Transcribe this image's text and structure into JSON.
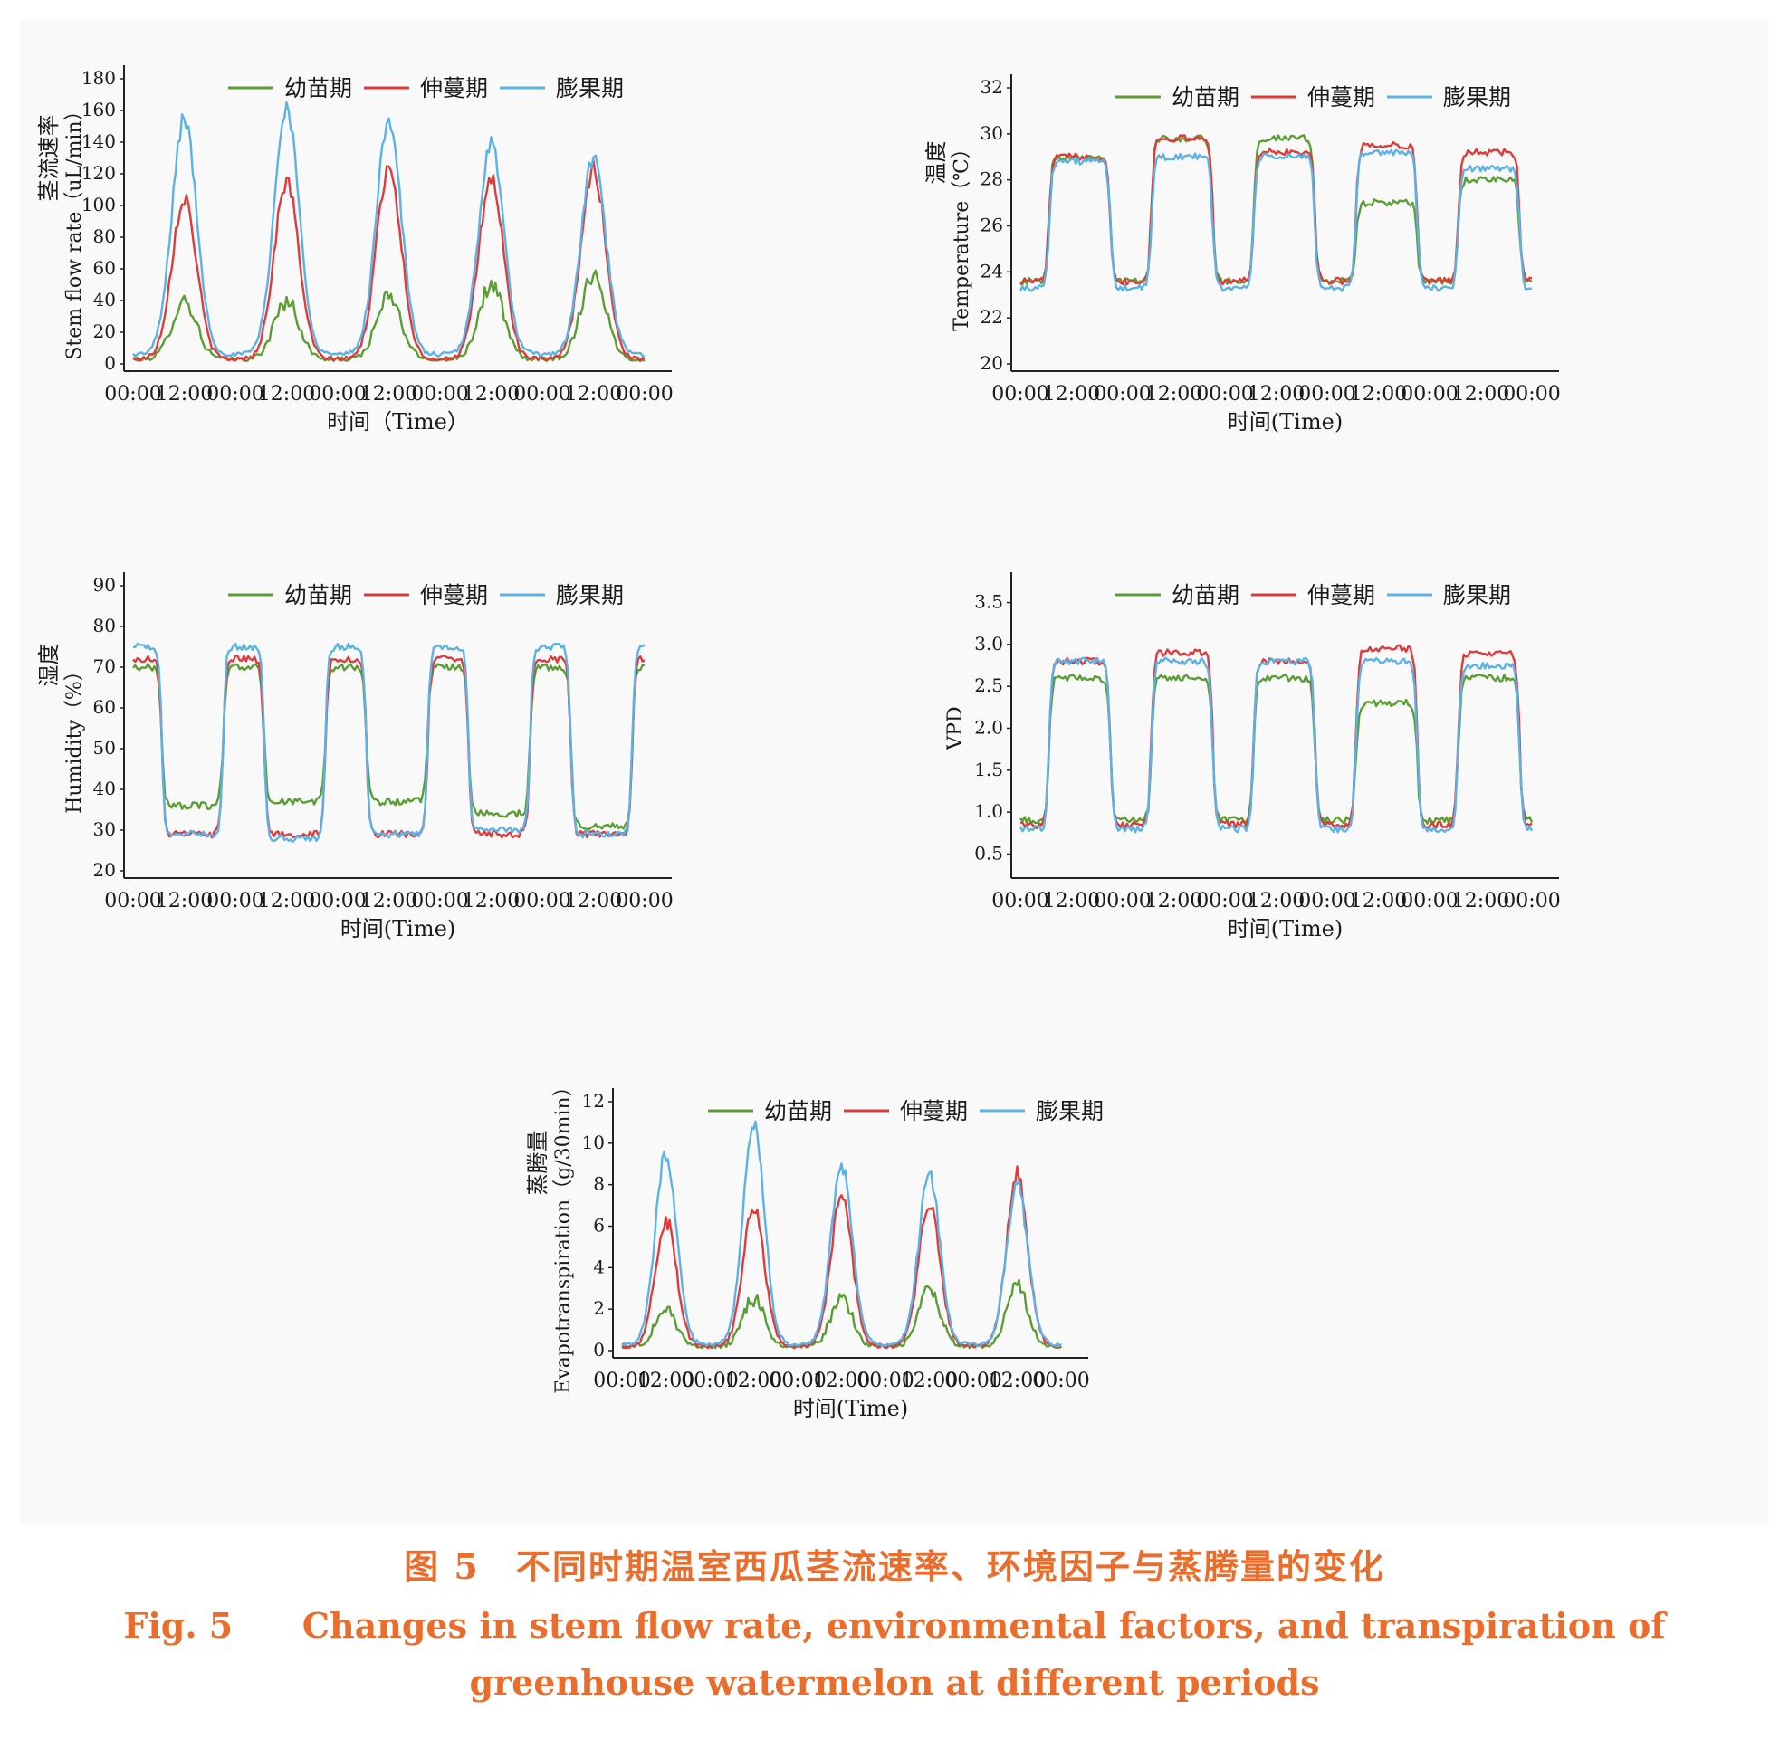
{
  "figure": {
    "caption_cn": "图 5　不同时期温室西瓜茎流速率、环境因子与蒸腾量的变化",
    "caption_en_label": "Fig. 5",
    "caption_en_line1": "Changes in stem flow rate, environmental factors, and transpiration of",
    "caption_en_line2": "greenhouse watermelon at different periods"
  },
  "colors": {
    "幼苗期": "#5a9e32",
    "伸蔓期": "#e03a3a",
    "膨果期": "#5bb2e6"
  },
  "chart_data": [
    {
      "id": "stem",
      "type": "line",
      "ylabel_cn": "茎流速率",
      "ylabel_en": "Stem flow rate（uL/min）",
      "xlabel": "时间（Time）",
      "ylim": [
        0,
        180
      ],
      "yticks": [
        "0",
        "20",
        "40",
        "60",
        "80",
        "100",
        "120",
        "140",
        "160",
        "180"
      ],
      "xticks": [
        "00:00",
        "12:00",
        "00:00",
        "12:00",
        "00:00",
        "12:00",
        "00:00",
        "12:00",
        "00:00",
        "12:00",
        "00:00"
      ],
      "legend": [
        "幼苗期",
        "伸蔓期",
        "膨果期"
      ],
      "series": [
        {
          "name": "幼苗期",
          "night": 3,
          "peaks": [
            40,
            40,
            42,
            50,
            57
          ]
        },
        {
          "name": "伸蔓期",
          "night": 3,
          "peaks": [
            105,
            115,
            125,
            117,
            123
          ]
        },
        {
          "name": "膨果期",
          "night": 6,
          "peaks": [
            155,
            162,
            155,
            140,
            130
          ]
        }
      ]
    },
    {
      "id": "temp",
      "type": "line",
      "ylabel_cn": "温度",
      "ylabel_en": "Temperature（℃）",
      "xlabel": "时间(Time)",
      "ylim": [
        20,
        32
      ],
      "yticks": [
        "20",
        "22",
        "24",
        "26",
        "28",
        "30",
        "32"
      ],
      "xticks": [
        "00:00",
        "12:00",
        "00:00",
        "12:00",
        "00:00",
        "12:00",
        "00:00",
        "12:00",
        "00:00",
        "12:00",
        "00:00"
      ],
      "legend": [
        "幼苗期",
        "伸蔓期",
        "膨果期"
      ],
      "series": [
        {
          "name": "幼苗期",
          "night": 23.6,
          "peaks": [
            29.0,
            29.8,
            29.8,
            27.0,
            28.0
          ]
        },
        {
          "name": "伸蔓期",
          "night": 23.6,
          "peaks": [
            29.0,
            29.8,
            29.2,
            29.5,
            29.2
          ]
        },
        {
          "name": "膨果期",
          "night": 23.3,
          "peaks": [
            28.8,
            29.0,
            29.0,
            29.2,
            28.5
          ]
        }
      ]
    },
    {
      "id": "hum",
      "type": "line",
      "ylabel_cn": "湿度",
      "ylabel_en": "Humidity（%）",
      "xlabel": "时间(Time)",
      "ylim": [
        20,
        90
      ],
      "yticks": [
        "20",
        "30",
        "40",
        "50",
        "60",
        "70",
        "80",
        "90"
      ],
      "xticks": [
        "00:00",
        "12:00",
        "00:00",
        "12:00",
        "00:00",
        "12:00",
        "00:00",
        "12:00",
        "00:00",
        "12:00",
        "00:00"
      ],
      "legend": [
        "幼苗期",
        "伸蔓期",
        "膨果期"
      ],
      "series": [
        {
          "name": "幼苗期",
          "night": 70,
          "peaks": [
            36,
            37,
            37,
            34,
            31
          ]
        },
        {
          "name": "伸蔓期",
          "night": 72,
          "peaks": [
            29,
            29,
            29,
            29,
            29
          ]
        },
        {
          "name": "膨果期",
          "night": 75,
          "peaks": [
            29,
            28,
            29,
            30,
            29
          ]
        }
      ]
    },
    {
      "id": "vpd",
      "type": "line",
      "ylabel_cn": "",
      "ylabel_en": "VPD",
      "xlabel": "时间(Time)",
      "ylim": [
        0.3,
        3.7
      ],
      "yticks": [
        "0.5",
        "1.0",
        "1.5",
        "2.0",
        "2.5",
        "3.0",
        "3.5"
      ],
      "xticks": [
        "00:00",
        "12:00",
        "00:00",
        "12:00",
        "00:00",
        "12:00",
        "00:00",
        "12:00",
        "00:00",
        "12:00",
        "00:00"
      ],
      "legend": [
        "幼苗期",
        "伸蔓期",
        "膨果期"
      ],
      "series": [
        {
          "name": "幼苗期",
          "night": 0.9,
          "peaks": [
            2.6,
            2.6,
            2.6,
            2.3,
            2.6
          ]
        },
        {
          "name": "伸蔓期",
          "night": 0.85,
          "peaks": [
            2.8,
            2.9,
            2.8,
            2.95,
            2.9
          ]
        },
        {
          "name": "膨果期",
          "night": 0.8,
          "peaks": [
            2.8,
            2.8,
            2.8,
            2.8,
            2.75
          ]
        }
      ]
    },
    {
      "id": "et",
      "type": "line",
      "ylabel_cn": "蒸腾量",
      "ylabel_en": "Evapotranspiration（g/30min）",
      "xlabel": "时间(Time)",
      "ylim": [
        0,
        12
      ],
      "yticks": [
        "0",
        "2",
        "4",
        "6",
        "8",
        "10",
        "12"
      ],
      "xticks": [
        "00:00",
        "12:00",
        "00:00",
        "12:00",
        "00:00",
        "12:00",
        "00:00",
        "12:00",
        "00:00",
        "12:00",
        "00:00"
      ],
      "legend": [
        "幼苗期",
        "伸蔓期",
        "膨果期"
      ],
      "series": [
        {
          "name": "幼苗期",
          "night": 0.2,
          "peaks": [
            2.0,
            2.5,
            2.6,
            3.0,
            3.2
          ]
        },
        {
          "name": "伸蔓期",
          "night": 0.2,
          "peaks": [
            6.3,
            7.0,
            7.5,
            7.2,
            8.5
          ]
        },
        {
          "name": "膨果期",
          "night": 0.3,
          "peaks": [
            9.5,
            11.0,
            9.0,
            8.5,
            8.0
          ]
        }
      ]
    }
  ]
}
